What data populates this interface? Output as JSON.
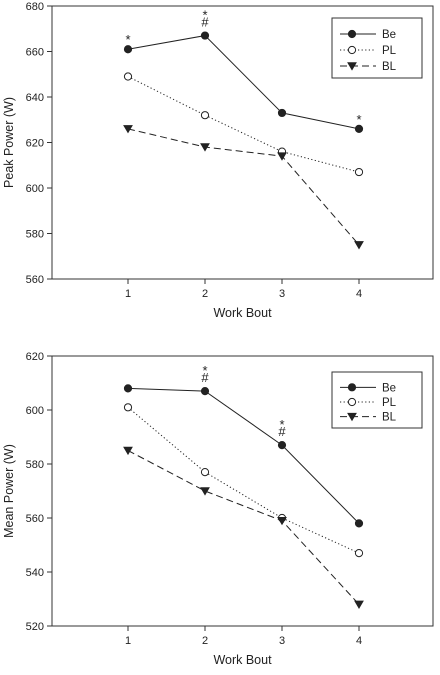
{
  "colors": {
    "line": "#222222",
    "axis": "#333333",
    "background": "#ffffff"
  },
  "chart_data": [
    {
      "type": "line",
      "ylabel": "Peak Power (W)",
      "xlabel": "Work Bout",
      "x": [
        1,
        2,
        3,
        4
      ],
      "xticks": [
        "1",
        "2",
        "3",
        "4"
      ],
      "ylim": [
        560,
        680
      ],
      "yticks": [
        560,
        580,
        600,
        620,
        640,
        660,
        680
      ],
      "grid": false,
      "legend_position": "top-right",
      "series": [
        {
          "name": "Be",
          "values": [
            661,
            667,
            633,
            626
          ],
          "marker": "filled-circle",
          "line": "solid"
        },
        {
          "name": "PL",
          "values": [
            649,
            632,
            616,
            607
          ],
          "marker": "open-circle",
          "line": "dotted"
        },
        {
          "name": "BL",
          "values": [
            626,
            618,
            614,
            575
          ],
          "marker": "filled-triangle-down",
          "line": "dashed"
        }
      ],
      "annotations": [
        {
          "x": 1,
          "text": "*",
          "series": "Be"
        },
        {
          "x": 2,
          "text": "*\n#",
          "series": "Be"
        },
        {
          "x": 4,
          "text": "*",
          "series": "Be"
        }
      ]
    },
    {
      "type": "line",
      "ylabel": "Mean Power (W)",
      "xlabel": "Work Bout",
      "x": [
        1,
        2,
        3,
        4
      ],
      "xticks": [
        "1",
        "2",
        "3",
        "4"
      ],
      "ylim": [
        520,
        620
      ],
      "yticks": [
        520,
        540,
        560,
        580,
        600,
        620
      ],
      "grid": false,
      "legend_position": "top-right",
      "series": [
        {
          "name": "Be",
          "values": [
            608,
            607,
            587,
            558
          ],
          "marker": "filled-circle",
          "line": "solid"
        },
        {
          "name": "PL",
          "values": [
            601,
            577,
            560,
            547
          ],
          "marker": "open-circle",
          "line": "dotted"
        },
        {
          "name": "BL",
          "values": [
            585,
            570,
            559,
            528
          ],
          "marker": "filled-triangle-down",
          "line": "dashed"
        }
      ],
      "annotations": [
        {
          "x": 2,
          "text": "*\n#",
          "series": "Be"
        },
        {
          "x": 3,
          "text": "*\n#",
          "series": "Be"
        }
      ]
    }
  ]
}
